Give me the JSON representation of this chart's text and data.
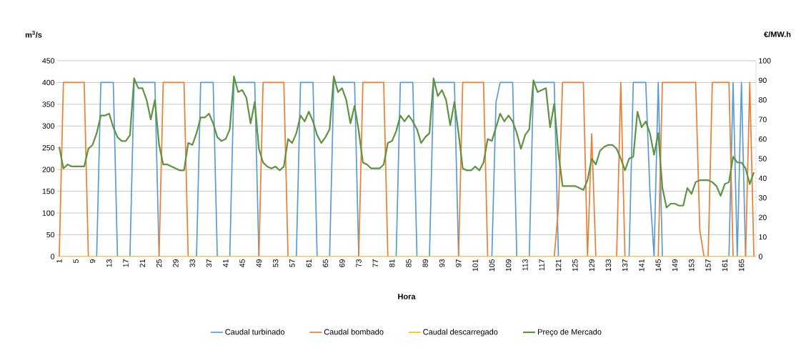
{
  "chart_data": {
    "type": "line",
    "xlabel": "Hora",
    "ylabel": "m$^{3}$/s",
    "y2label": "€/MW.h",
    "categories": [
      "1",
      null,
      null,
      null,
      "5",
      null,
      null,
      null,
      "9",
      null,
      null,
      null,
      "13",
      null,
      null,
      null,
      "17",
      null,
      null,
      null,
      "21",
      null,
      null,
      null,
      "25",
      null,
      null,
      null,
      "29",
      null,
      null,
      null,
      "33",
      null,
      null,
      null,
      "37",
      null,
      null,
      null,
      "41",
      null,
      null,
      null,
      "45",
      null,
      null,
      null,
      "49",
      null,
      null,
      null,
      "53",
      null,
      null,
      null,
      "57",
      null,
      null,
      null,
      "61",
      null,
      null,
      null,
      "65",
      null,
      null,
      null,
      "69",
      null,
      null,
      null,
      "73",
      null,
      null,
      null,
      "77",
      null,
      null,
      null,
      "81",
      null,
      null,
      null,
      "85",
      null,
      null,
      null,
      "89",
      null,
      null,
      null,
      "93",
      null,
      null,
      null,
      "97",
      null,
      null,
      null,
      "101",
      null,
      null,
      null,
      "105",
      null,
      null,
      null,
      "109",
      null,
      null,
      null,
      "113",
      null,
      null,
      null,
      "117",
      null,
      null,
      null,
      "121",
      null,
      null,
      null,
      "125",
      null,
      null,
      null,
      "129",
      null,
      null,
      null,
      "133",
      null,
      null,
      null,
      "137",
      null,
      null,
      null,
      "141",
      null,
      null,
      null,
      "145",
      null,
      null,
      null,
      "149",
      null,
      null,
      null,
      "153",
      null,
      null,
      null,
      "157",
      null,
      null,
      null,
      "161",
      null,
      null,
      null,
      "165",
      null,
      null,
      null
    ],
    "series": [
      {
        "name": "Caudal turbinado",
        "color": "#5b9bd5",
        "values": [
          null,
          null,
          null,
          null,
          null,
          null,
          null,
          null,
          null,
          0,
          400,
          400,
          400,
          400,
          0,
          null,
          null,
          0,
          400,
          400,
          400,
          400,
          400,
          400,
          0,
          null,
          null,
          null,
          null,
          null,
          null,
          null,
          null,
          0,
          400,
          400,
          400,
          400,
          0,
          null,
          null,
          0,
          400,
          400,
          400,
          400,
          400,
          400,
          0,
          null,
          null,
          null,
          null,
          null,
          null,
          null,
          null,
          0,
          400,
          400,
          400,
          400,
          0,
          null,
          null,
          0,
          400,
          400,
          400,
          400,
          400,
          400,
          0,
          null,
          null,
          null,
          null,
          null,
          null,
          null,
          null,
          0,
          400,
          400,
          400,
          400,
          0,
          null,
          null,
          0,
          400,
          400,
          400,
          400,
          400,
          400,
          0,
          null,
          null,
          null,
          null,
          null,
          null,
          null,
          0,
          355,
          400,
          400,
          400,
          400,
          0,
          null,
          null,
          0,
          400,
          400,
          400,
          400,
          400,
          400,
          0,
          null,
          null,
          null,
          null,
          null,
          null,
          null,
          null,
          null,
          null,
          null,
          null,
          null,
          null,
          null,
          null,
          0,
          400,
          400,
          400,
          400,
          150,
          0,
          400,
          0,
          null,
          null,
          null,
          null,
          null,
          null,
          null,
          null,
          null,
          null,
          null,
          null,
          null,
          null,
          null,
          0,
          400,
          0,
          400,
          0,
          null,
          null
        ]
      },
      {
        "name": "Caudal bombado",
        "color": "#ed7d31",
        "values": [
          0,
          400,
          400,
          400,
          400,
          400,
          400,
          0,
          null,
          null,
          null,
          null,
          null,
          null,
          null,
          null,
          null,
          null,
          null,
          null,
          null,
          null,
          null,
          null,
          0,
          400,
          400,
          400,
          400,
          400,
          400,
          0,
          null,
          null,
          null,
          null,
          null,
          null,
          null,
          null,
          null,
          null,
          null,
          null,
          null,
          null,
          null,
          null,
          0,
          400,
          400,
          400,
          400,
          400,
          400,
          0,
          null,
          null,
          null,
          null,
          null,
          null,
          null,
          null,
          null,
          null,
          null,
          null,
          null,
          null,
          null,
          null,
          0,
          400,
          400,
          400,
          400,
          400,
          400,
          0,
          null,
          null,
          null,
          null,
          null,
          null,
          null,
          null,
          null,
          null,
          null,
          null,
          null,
          null,
          null,
          null,
          0,
          400,
          400,
          400,
          400,
          400,
          400,
          0,
          null,
          null,
          null,
          null,
          null,
          null,
          null,
          null,
          null,
          null,
          null,
          null,
          null,
          null,
          null,
          0,
          110,
          400,
          400,
          400,
          400,
          400,
          400,
          0,
          282,
          0,
          null,
          null,
          null,
          null,
          0,
          400,
          0,
          null,
          null,
          null,
          null,
          null,
          null,
          null,
          0,
          400,
          400,
          400,
          400,
          400,
          400,
          400,
          400,
          400,
          60,
          0,
          0,
          400,
          400,
          400,
          400,
          400,
          0,
          null,
          null,
          0,
          400,
          0
        ]
      },
      {
        "name": "Caudal descarregado",
        "color": "#ffc000",
        "values": [
          0,
          0,
          0,
          0,
          0,
          0,
          0,
          0,
          0,
          0,
          0,
          0,
          0,
          0,
          0,
          0,
          0,
          0,
          0,
          0,
          0,
          0,
          0,
          0,
          0,
          0,
          0,
          0,
          0,
          0,
          0,
          0,
          0,
          0,
          0,
          0,
          0,
          0,
          0,
          0,
          0,
          0,
          0,
          0,
          0,
          0,
          0,
          0,
          0,
          0,
          0,
          0,
          0,
          0,
          0,
          0,
          0,
          0,
          0,
          0,
          0,
          0,
          0,
          0,
          0,
          0,
          0,
          0,
          0,
          0,
          0,
          0,
          0,
          0,
          0,
          0,
          0,
          0,
          0,
          0,
          0,
          0,
          0,
          0,
          0,
          0,
          0,
          0,
          0,
          0,
          0,
          0,
          0,
          0,
          0,
          0,
          0,
          0,
          0,
          0,
          0,
          0,
          0,
          0,
          0,
          0,
          0,
          0,
          0,
          0,
          0,
          0,
          0,
          0,
          0,
          0,
          0,
          0,
          0,
          0,
          0,
          0,
          0,
          0,
          0,
          0,
          0,
          0,
          0,
          0,
          0,
          0,
          0,
          0,
          0,
          0,
          0,
          0,
          0,
          0,
          0,
          0,
          0,
          0,
          0,
          0,
          0,
          0,
          0,
          0,
          0,
          0,
          0,
          0,
          0,
          0,
          0,
          0,
          0,
          0,
          0,
          0,
          0,
          0,
          0,
          0,
          0,
          0
        ]
      },
      {
        "name": "Preço de Mercado",
        "color": "#5e9441",
        "axis": "y2",
        "values": [
          56,
          45,
          47,
          46,
          46,
          46,
          46,
          55,
          57,
          63,
          72,
          72,
          73,
          66,
          61,
          59,
          59,
          62,
          91,
          86,
          86,
          80,
          70,
          80,
          57,
          47,
          47,
          46,
          45,
          44,
          44,
          58,
          57,
          63,
          71,
          71,
          73,
          68,
          61,
          59,
          60,
          65,
          92,
          84,
          85,
          81,
          68,
          79,
          55,
          48,
          46,
          45,
          46,
          44,
          46,
          60,
          58,
          63,
          72,
          69,
          74,
          69,
          62,
          58,
          61,
          65,
          92,
          84,
          86,
          80,
          68,
          77,
          64,
          48,
          47,
          45,
          45,
          45,
          47,
          58,
          59,
          64,
          72,
          69,
          72,
          69,
          65,
          58,
          61,
          63,
          91,
          82,
          85,
          80,
          67,
          79,
          63,
          45,
          44,
          44,
          46,
          44,
          48,
          60,
          59,
          66,
          73,
          69,
          72,
          69,
          63,
          55,
          62,
          65,
          90,
          84,
          85,
          86,
          66,
          78,
          53,
          36,
          36,
          36,
          36,
          35,
          34,
          39,
          50,
          47,
          54,
          56,
          57,
          57,
          55,
          50,
          44,
          50,
          51,
          74,
          66,
          69,
          63,
          52,
          63,
          35,
          25,
          27,
          27,
          26,
          26,
          35,
          32,
          38,
          39,
          39,
          39,
          38,
          36,
          31,
          37,
          38,
          51,
          48,
          48,
          45,
          37,
          43
        ]
      }
    ],
    "ylim": [
      0,
      450
    ],
    "yticks": [
      0,
      50,
      100,
      150,
      200,
      250,
      300,
      350,
      400,
      450
    ],
    "y2lim": [
      0,
      100
    ],
    "y2ticks": [
      0,
      10,
      20,
      30,
      40,
      50,
      60,
      70,
      80,
      90,
      100
    ],
    "grid": "y",
    "legend": "bottom"
  }
}
